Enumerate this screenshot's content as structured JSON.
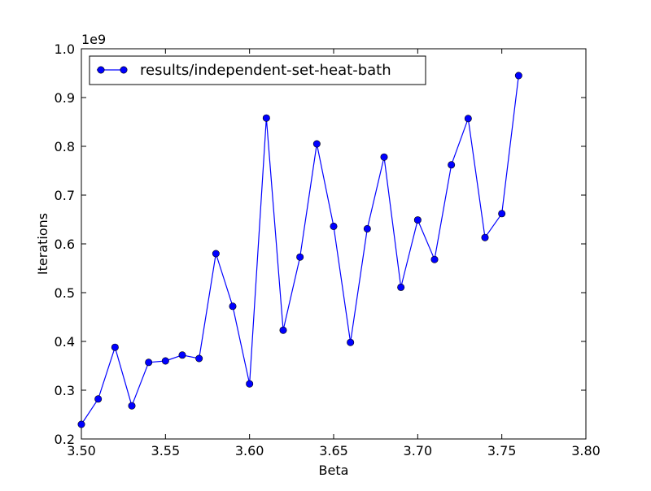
{
  "chart_data": {
    "type": "line",
    "title": "",
    "xlabel": "Beta",
    "ylabel": "Iterations",
    "y_offset_label": "1e9",
    "xlim": [
      3.5,
      3.8
    ],
    "ylim": [
      0.2,
      1.0
    ],
    "x_ticks": [
      3.5,
      3.55,
      3.6,
      3.65,
      3.7,
      3.75,
      3.8
    ],
    "x_tick_labels": [
      "3.50",
      "3.55",
      "3.60",
      "3.65",
      "3.70",
      "3.75",
      "3.80"
    ],
    "y_ticks": [
      0.2,
      0.3,
      0.4,
      0.5,
      0.6,
      0.7,
      0.8,
      0.9,
      1.0
    ],
    "y_tick_labels": [
      "0.2",
      "0.3",
      "0.4",
      "0.5",
      "0.6",
      "0.7",
      "0.8",
      "0.9",
      "1.0"
    ],
    "grid": false,
    "legend_position": "top-left",
    "series": [
      {
        "name": "results/independent-set-heat-bath",
        "color": "#0000ff",
        "marker": "circle",
        "x": [
          3.5,
          3.51,
          3.52,
          3.53,
          3.54,
          3.55,
          3.56,
          3.57,
          3.58,
          3.59,
          3.6,
          3.61,
          3.62,
          3.63,
          3.64,
          3.65,
          3.66,
          3.67,
          3.68,
          3.69,
          3.7,
          3.71,
          3.72,
          3.73,
          3.74,
          3.75,
          3.76
        ],
        "y": [
          0.23,
          0.282,
          0.388,
          0.268,
          0.357,
          0.36,
          0.372,
          0.365,
          0.58,
          0.472,
          0.313,
          0.858,
          0.423,
          0.573,
          0.805,
          0.636,
          0.398,
          0.631,
          0.778,
          0.511,
          0.649,
          0.568,
          0.762,
          0.857,
          0.613,
          0.662,
          0.945
        ]
      }
    ]
  }
}
